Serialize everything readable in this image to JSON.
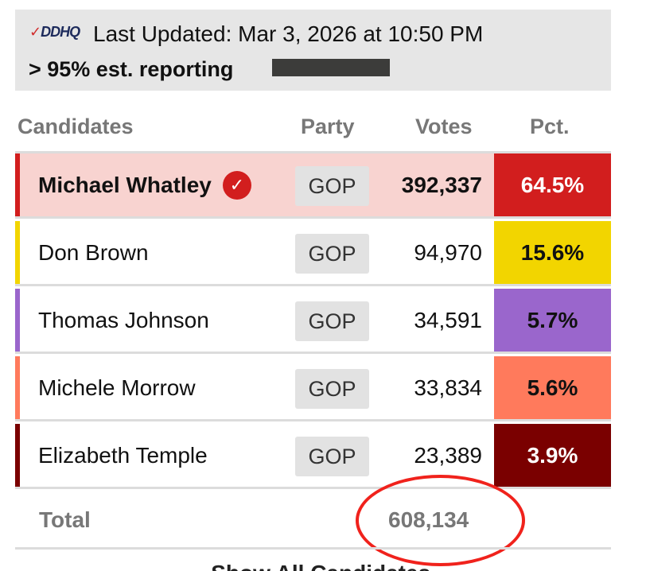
{
  "header": {
    "logo": "DDHQ",
    "last_updated": "Last Updated: Mar 3, 2026 at 10:50 PM",
    "reporting": "> 95% est. reporting"
  },
  "columns": {
    "candidates": "Candidates",
    "party": "Party",
    "votes": "Votes",
    "pct": "Pct."
  },
  "rows": [
    {
      "name": "Michael Whatley",
      "party": "GOP",
      "votes": "392,337",
      "pct": "64.5%",
      "winner": true,
      "stripe_color": "#d21e1e",
      "pct_bg": "#d21e1e",
      "pct_color": "#ffffff",
      "row_bg": "#f8d3d0"
    },
    {
      "name": "Don Brown",
      "party": "GOP",
      "votes": "94,970",
      "pct": "15.6%",
      "winner": false,
      "stripe_color": "#f2d500",
      "pct_bg": "#f2d500",
      "pct_color": "#111111",
      "row_bg": "#ffffff"
    },
    {
      "name": "Thomas Johnson",
      "party": "GOP",
      "votes": "34,591",
      "pct": "5.7%",
      "winner": false,
      "stripe_color": "#9a66cc",
      "pct_bg": "#9a66cc",
      "pct_color": "#111111",
      "row_bg": "#ffffff"
    },
    {
      "name": "Michele Morrow",
      "party": "GOP",
      "votes": "33,834",
      "pct": "5.6%",
      "winner": false,
      "stripe_color": "#ff7a5c",
      "pct_bg": "#ff7a5c",
      "pct_color": "#111111",
      "row_bg": "#ffffff"
    },
    {
      "name": "Elizabeth Temple",
      "party": "GOP",
      "votes": "23,389",
      "pct": "3.9%",
      "winner": false,
      "stripe_color": "#7a0000",
      "pct_bg": "#7a0000",
      "pct_color": "#ffffff",
      "row_bg": "#ffffff"
    }
  ],
  "total": {
    "label": "Total",
    "votes": "608,134"
  },
  "show_all": "Show All Candidates",
  "icons": {
    "winner": "check-circle-icon",
    "show_all": "chevron-down-icon"
  }
}
